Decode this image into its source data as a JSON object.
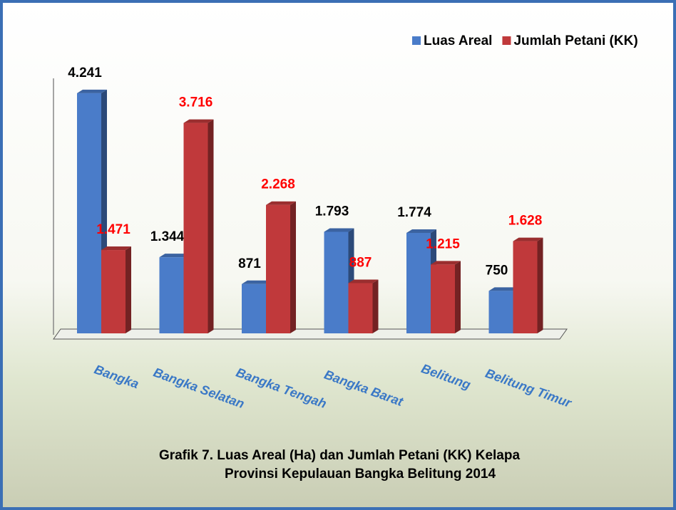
{
  "chart_data": {
    "type": "bar3d",
    "title": "Grafik 7.  Luas Areal (Ha) dan Jumlah Petani (KK) Kelapa",
    "subtitle": "Provinsi Kepulauan Bangka Belitung 2014",
    "categories": [
      "Bangka",
      "Bangka Selatan",
      "Bangka Tengah",
      "Bangka Barat",
      "Belitung",
      "Belitung Timur"
    ],
    "series": [
      {
        "name": "Luas Areal",
        "color": "#4a7cc9",
        "label_color": "#000000",
        "values": [
          4241,
          1344,
          871,
          1793,
          1774,
          750
        ],
        "value_labels": [
          "4.241",
          "1.344",
          "871",
          "1.793",
          "1.774",
          "750"
        ]
      },
      {
        "name": "Jumlah Petani (KK)",
        "color": "#c0393b",
        "label_color": "#ff0000",
        "values": [
          1471,
          3716,
          2268,
          887,
          1215,
          1628
        ],
        "value_labels": [
          "1.471",
          "3.716",
          "2.268",
          "887",
          "1.215",
          "1.628"
        ]
      }
    ],
    "legend": "top-right"
  }
}
